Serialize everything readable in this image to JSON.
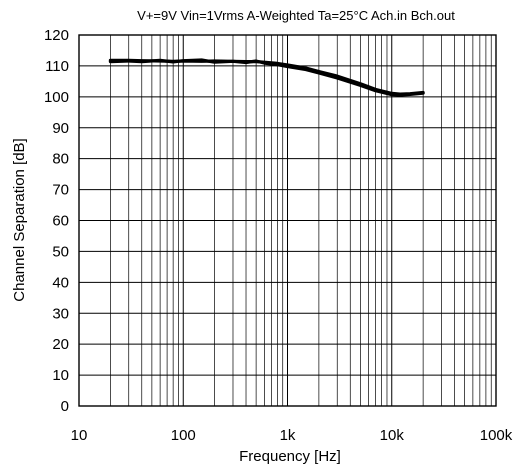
{
  "chart_data": {
    "type": "line",
    "title": "V+=9V Vin=1Vrms A-Weighted Ta=25°C Ach.in Bch.out",
    "xlabel": "Frequency [Hz]",
    "ylabel": "Channel Separation [dB]",
    "x_scale": "log",
    "xlim": [
      10,
      100000
    ],
    "ylim": [
      0,
      120
    ],
    "grid": true,
    "x_ticks": [
      {
        "value": 10,
        "label": "10"
      },
      {
        "value": 100,
        "label": "100"
      },
      {
        "value": 1000,
        "label": "1k"
      },
      {
        "value": 10000,
        "label": "10k"
      },
      {
        "value": 100000,
        "label": "100k"
      }
    ],
    "y_ticks": [
      {
        "value": 0,
        "label": "0"
      },
      {
        "value": 10,
        "label": "10"
      },
      {
        "value": 20,
        "label": "20"
      },
      {
        "value": 30,
        "label": "30"
      },
      {
        "value": 40,
        "label": "40"
      },
      {
        "value": 50,
        "label": "50"
      },
      {
        "value": 60,
        "label": "60"
      },
      {
        "value": 70,
        "label": "70"
      },
      {
        "value": 80,
        "label": "80"
      },
      {
        "value": 90,
        "label": "90"
      },
      {
        "value": 100,
        "label": "100"
      },
      {
        "value": 110,
        "label": "110"
      },
      {
        "value": 120,
        "label": "120"
      }
    ],
    "series": [
      {
        "color": "#000000",
        "x": [
          20,
          30,
          40,
          60,
          80,
          100,
          150,
          200,
          300,
          400,
          500,
          600,
          800,
          1000,
          1500,
          2000,
          3000,
          5000,
          7000,
          10000,
          12000,
          15000,
          20000
        ],
        "y": [
          111.8,
          111.8,
          111.7,
          111.6,
          111.5,
          111.6,
          111.5,
          111.6,
          111.5,
          111.4,
          111.4,
          111.2,
          110.8,
          110.3,
          109.3,
          108.2,
          106.7,
          104.2,
          102.4,
          101.1,
          100.9,
          101.0,
          101.4
        ]
      },
      {
        "color": "#000000",
        "x": [
          20,
          30,
          40,
          60,
          80,
          100,
          150,
          200,
          300,
          400,
          500,
          600,
          800,
          1000,
          1500,
          2000,
          3000,
          5000,
          7000,
          10000,
          12000,
          15000,
          20000
        ],
        "y": [
          111.4,
          111.6,
          111.4,
          111.8,
          111.3,
          111.7,
          111.9,
          111.2,
          111.5,
          111.1,
          111.6,
          110.9,
          110.4,
          109.8,
          108.8,
          107.7,
          106.1,
          103.7,
          102.0,
          100.7,
          100.6,
          100.8,
          101.2
        ]
      }
    ]
  }
}
